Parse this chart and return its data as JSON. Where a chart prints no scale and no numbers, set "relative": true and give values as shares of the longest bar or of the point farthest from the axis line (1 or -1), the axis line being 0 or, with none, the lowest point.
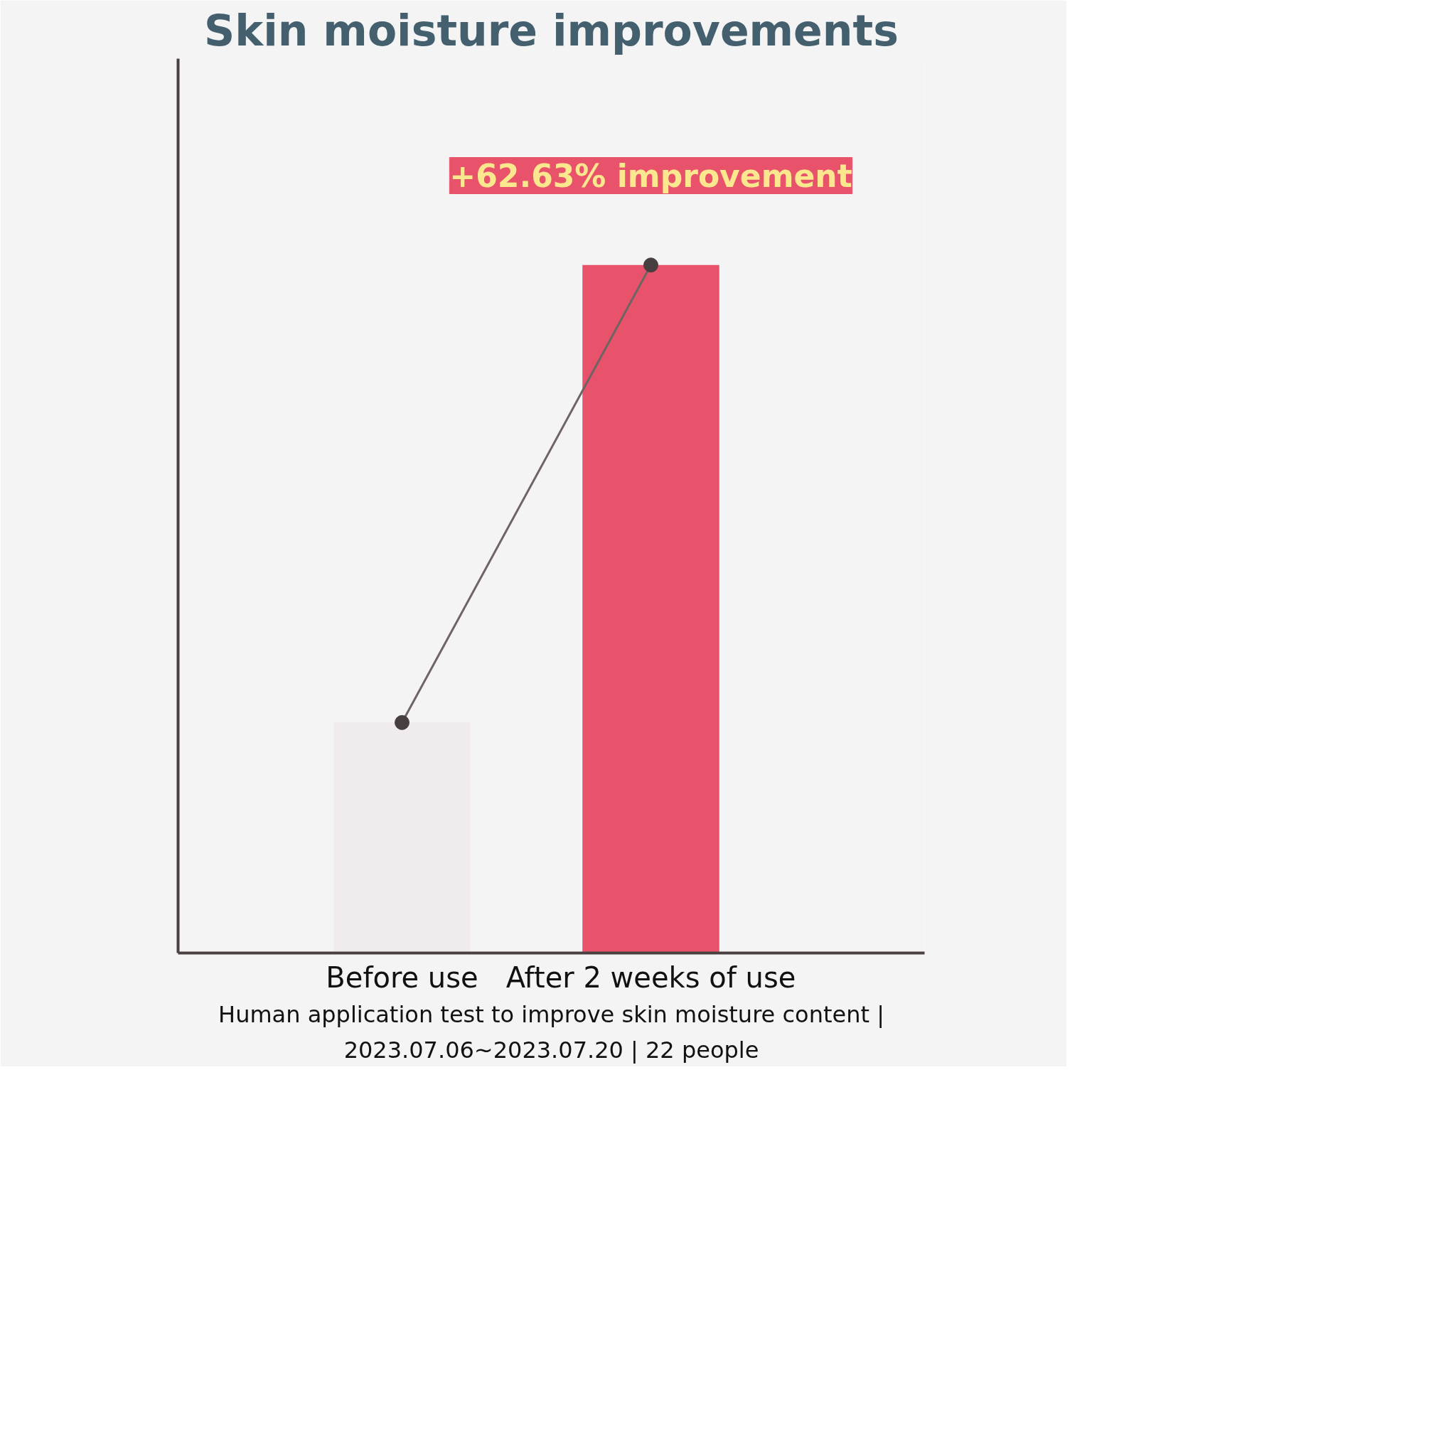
{
  "chart_data": {
    "type": "bar",
    "title": "Skin moisture improvements",
    "relative": true,
    "categories": [
      "Before use",
      "After 2 weeks of use"
    ],
    "series": [
      {
        "colors": [
          "#f0eced",
          "#e8536b"
        ],
        "values": [
          0.335,
          1
        ]
      },
      {
        "type": "line",
        "color": "#6f6464",
        "values": [
          0.335,
          1
        ],
        "marker": "circle"
      }
    ],
    "annotations": [
      "+62.63% improvement",
      "Human application test to improve skin moisture content |",
      "2023.07.06~2023.07.20 | 22 people"
    ]
  }
}
